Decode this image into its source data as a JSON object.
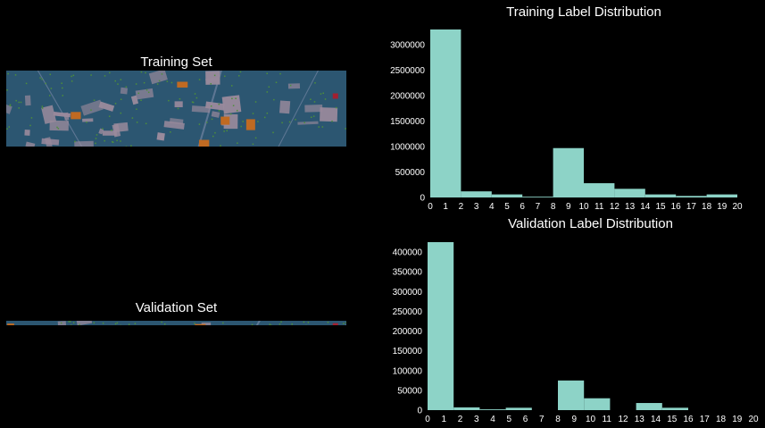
{
  "left": {
    "training_title": "Training Set",
    "validation_title": "Validation Set"
  },
  "colors": {
    "background": "#000000",
    "bar": "#8dd3c7",
    "text": "#ffffff",
    "map_base": "#2c5671",
    "map_roof": "#9a8a9c",
    "map_road": "#6a7e9c",
    "map_orange": "#c06a22",
    "map_green": "#4d8f3a",
    "map_red": "#a22030"
  },
  "chart_data": [
    {
      "type": "bar",
      "title": "Training Label Distribution",
      "xlabel": "",
      "ylabel": "",
      "x_ticks": [
        0,
        1,
        2,
        3,
        4,
        5,
        6,
        7,
        8,
        9,
        10,
        11,
        12,
        13,
        14,
        15,
        16,
        17,
        18,
        19,
        20
      ],
      "ylim": [
        0,
        3300000
      ],
      "y_ticks": [
        0,
        500000,
        1000000,
        1500000,
        2000000,
        2500000,
        3000000
      ],
      "y_tick_labels": [
        "0",
        "500000",
        "1000000",
        "1500000",
        "2000000",
        "2500000",
        "3000000"
      ],
      "grid": false,
      "bins": [
        {
          "x0": 0,
          "x1": 2,
          "value": 3300000
        },
        {
          "x0": 2,
          "x1": 4,
          "value": 120000
        },
        {
          "x0": 4,
          "x1": 6,
          "value": 60000
        },
        {
          "x0": 6,
          "x1": 8,
          "value": 15000
        },
        {
          "x0": 8,
          "x1": 10,
          "value": 970000
        },
        {
          "x0": 10,
          "x1": 12,
          "value": 280000
        },
        {
          "x0": 12,
          "x1": 14,
          "value": 170000
        },
        {
          "x0": 14,
          "x1": 16,
          "value": 60000
        },
        {
          "x0": 16,
          "x1": 18,
          "value": 30000
        },
        {
          "x0": 18,
          "x1": 20,
          "value": 60000
        }
      ]
    },
    {
      "type": "bar",
      "title": "Validation Label Distribution",
      "xlabel": "",
      "ylabel": "",
      "x_ticks": [
        0,
        1,
        2,
        3,
        4,
        5,
        6,
        7,
        8,
        9,
        10,
        11,
        12,
        13,
        14,
        15,
        16,
        17,
        18,
        19,
        20
      ],
      "ylim": [
        0,
        425000
      ],
      "y_ticks": [
        0,
        50000,
        100000,
        150000,
        200000,
        250000,
        300000,
        350000,
        400000
      ],
      "y_tick_labels": [
        "0",
        "50000",
        "100000",
        "150000",
        "200000",
        "250000",
        "300000",
        "350000",
        "400000"
      ],
      "grid": false,
      "bins": [
        {
          "x0": 0,
          "x1": 1.6,
          "value": 425000
        },
        {
          "x0": 1.6,
          "x1": 3.2,
          "value": 7000
        },
        {
          "x0": 3.2,
          "x1": 4.8,
          "value": 2000
        },
        {
          "x0": 4.8,
          "x1": 6.4,
          "value": 6000
        },
        {
          "x0": 6.4,
          "x1": 8.0,
          "value": 0
        },
        {
          "x0": 8.0,
          "x1": 9.6,
          "value": 75000
        },
        {
          "x0": 9.6,
          "x1": 11.2,
          "value": 30000
        },
        {
          "x0": 11.2,
          "x1": 12.8,
          "value": 0
        },
        {
          "x0": 12.8,
          "x1": 14.4,
          "value": 18000
        },
        {
          "x0": 14.4,
          "x1": 16.0,
          "value": 6000
        }
      ]
    }
  ]
}
